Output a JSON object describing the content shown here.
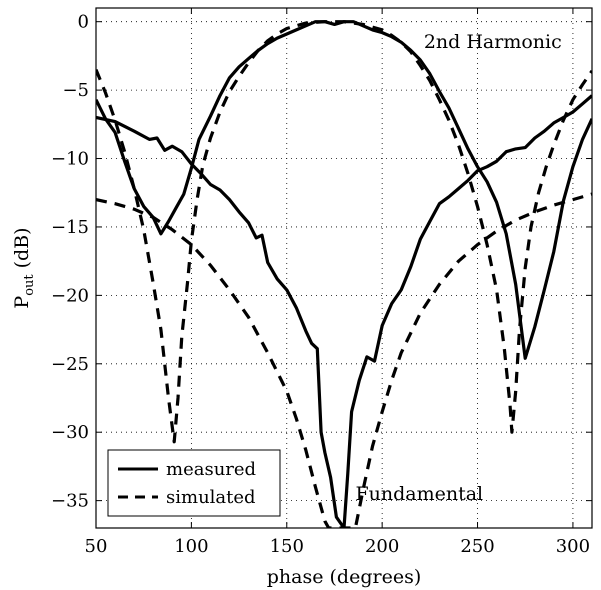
{
  "chart_data": {
    "type": "line",
    "title": "",
    "xlabel": "phase (degrees)",
    "ylabel": {
      "main": "P",
      "sub": "out",
      "unit": "(dB)"
    },
    "xlim": [
      50,
      310
    ],
    "ylim": [
      -37,
      1
    ],
    "xticks": [
      50,
      100,
      150,
      200,
      250,
      300
    ],
    "yticks": [
      0,
      -5,
      -10,
      -15,
      -20,
      -25,
      -30,
      -35
    ],
    "grid": "dotted",
    "legend": {
      "position": "bottom-left",
      "entries": [
        {
          "label": "measured",
          "style": "solid"
        },
        {
          "label": "simulated",
          "style": "dashed"
        }
      ]
    },
    "annotations": [
      {
        "text": "2nd Harmonic",
        "x": 258,
        "y": -1.5
      },
      {
        "text": "Fundamental",
        "x": 186,
        "y": -34.5
      }
    ],
    "series": [
      {
        "style": "solid",
        "points": [
          [
            50,
            -7.0
          ],
          [
            60,
            -7.3
          ],
          [
            70,
            -8.0
          ],
          [
            78,
            -8.6
          ],
          [
            82,
            -8.5
          ],
          [
            86,
            -9.4
          ],
          [
            90,
            -9.1
          ],
          [
            95,
            -9.5
          ],
          [
            100,
            -10.4
          ],
          [
            105,
            -11.1
          ],
          [
            110,
            -11.9
          ],
          [
            115,
            -12.3
          ],
          [
            120,
            -13.0
          ],
          [
            125,
            -13.9
          ],
          [
            130,
            -14.7
          ],
          [
            134,
            -15.8
          ],
          [
            137,
            -15.6
          ],
          [
            140,
            -17.6
          ],
          [
            145,
            -18.8
          ],
          [
            150,
            -19.6
          ],
          [
            155,
            -20.9
          ],
          [
            160,
            -22.6
          ],
          [
            163,
            -23.5
          ],
          [
            166,
            -23.9
          ],
          [
            168,
            -30.0
          ],
          [
            170,
            -31.5
          ],
          [
            173,
            -33.3
          ],
          [
            176,
            -36.2
          ],
          [
            180,
            -37.0
          ],
          [
            182,
            -33.0
          ],
          [
            184,
            -28.5
          ],
          [
            188,
            -26.2
          ],
          [
            192,
            -24.5
          ],
          [
            196,
            -24.8
          ],
          [
            200,
            -22.2
          ],
          [
            205,
            -20.6
          ],
          [
            210,
            -19.6
          ],
          [
            215,
            -17.9
          ],
          [
            220,
            -15.9
          ],
          [
            225,
            -14.6
          ],
          [
            230,
            -13.3
          ],
          [
            235,
            -12.8
          ],
          [
            240,
            -12.2
          ],
          [
            245,
            -11.6
          ],
          [
            250,
            -10.9
          ],
          [
            255,
            -10.6
          ],
          [
            260,
            -10.2
          ],
          [
            265,
            -9.5
          ],
          [
            270,
            -9.3
          ],
          [
            275,
            -9.2
          ],
          [
            280,
            -8.5
          ],
          [
            285,
            -8.0
          ],
          [
            290,
            -7.4
          ],
          [
            295,
            -7.0
          ],
          [
            300,
            -6.6
          ],
          [
            305,
            -6.0
          ],
          [
            310,
            -5.4
          ]
        ]
      },
      {
        "style": "solid",
        "points": [
          [
            50,
            -5.7
          ],
          [
            55,
            -7.1
          ],
          [
            60,
            -8.1
          ],
          [
            65,
            -10.2
          ],
          [
            70,
            -12.2
          ],
          [
            75,
            -13.5
          ],
          [
            80,
            -14.3
          ],
          [
            84,
            -15.5
          ],
          [
            88,
            -14.6
          ],
          [
            92,
            -13.6
          ],
          [
            96,
            -12.6
          ],
          [
            100,
            -10.7
          ],
          [
            104,
            -8.6
          ],
          [
            110,
            -6.9
          ],
          [
            115,
            -5.4
          ],
          [
            120,
            -4.1
          ],
          [
            125,
            -3.3
          ],
          [
            130,
            -2.7
          ],
          [
            135,
            -2.1
          ],
          [
            140,
            -1.6
          ],
          [
            145,
            -1.2
          ],
          [
            150,
            -0.9
          ],
          [
            155,
            -0.6
          ],
          [
            160,
            -0.3
          ],
          [
            165,
            0.0
          ],
          [
            170,
            0.0
          ],
          [
            175,
            -0.2
          ],
          [
            180,
            0.0
          ],
          [
            185,
            0.0
          ],
          [
            190,
            -0.3
          ],
          [
            195,
            -0.6
          ],
          [
            200,
            -0.8
          ],
          [
            205,
            -1.1
          ],
          [
            210,
            -1.5
          ],
          [
            215,
            -2.1
          ],
          [
            220,
            -2.8
          ],
          [
            225,
            -3.8
          ],
          [
            230,
            -5.1
          ],
          [
            235,
            -6.3
          ],
          [
            240,
            -7.8
          ],
          [
            245,
            -9.3
          ],
          [
            250,
            -10.6
          ],
          [
            255,
            -11.7
          ],
          [
            260,
            -13.2
          ],
          [
            265,
            -15.5
          ],
          [
            270,
            -19.2
          ],
          [
            275,
            -24.6
          ],
          [
            280,
            -22.3
          ],
          [
            285,
            -19.6
          ],
          [
            290,
            -16.8
          ],
          [
            295,
            -13.1
          ],
          [
            300,
            -10.6
          ],
          [
            305,
            -8.6
          ],
          [
            310,
            -7.1
          ]
        ]
      },
      {
        "style": "dashed",
        "points": [
          [
            50,
            -13.0
          ],
          [
            60,
            -13.3
          ],
          [
            70,
            -13.7
          ],
          [
            80,
            -14.3
          ],
          [
            90,
            -15.2
          ],
          [
            100,
            -16.3
          ],
          [
            110,
            -17.8
          ],
          [
            120,
            -19.6
          ],
          [
            130,
            -21.6
          ],
          [
            140,
            -24.2
          ],
          [
            150,
            -27.0
          ],
          [
            155,
            -29.0
          ],
          [
            160,
            -31.3
          ],
          [
            165,
            -34.0
          ],
          [
            170,
            -36.5
          ],
          [
            172,
            -37.0
          ],
          [
            180,
            -37.0
          ],
          [
            186,
            -37.0
          ],
          [
            190,
            -34.2
          ],
          [
            195,
            -31.0
          ],
          [
            200,
            -28.5
          ],
          [
            205,
            -26.2
          ],
          [
            210,
            -24.2
          ],
          [
            220,
            -21.3
          ],
          [
            230,
            -19.2
          ],
          [
            240,
            -17.5
          ],
          [
            250,
            -16.3
          ],
          [
            260,
            -15.3
          ],
          [
            270,
            -14.5
          ],
          [
            280,
            -13.9
          ],
          [
            290,
            -13.4
          ],
          [
            300,
            -13.0
          ],
          [
            310,
            -12.6
          ]
        ]
      },
      {
        "style": "dashed",
        "points": [
          [
            50,
            -3.5
          ],
          [
            55,
            -5.2
          ],
          [
            60,
            -7.2
          ],
          [
            65,
            -9.5
          ],
          [
            70,
            -12.2
          ],
          [
            75,
            -15.2
          ],
          [
            80,
            -19.1
          ],
          [
            84,
            -22.5
          ],
          [
            88,
            -27.5
          ],
          [
            91,
            -30.7
          ],
          [
            93,
            -27.5
          ],
          [
            95,
            -23.0
          ],
          [
            98,
            -19.0
          ],
          [
            100,
            -16.0
          ],
          [
            103,
            -13.0
          ],
          [
            106,
            -10.5
          ],
          [
            110,
            -8.5
          ],
          [
            115,
            -6.6
          ],
          [
            120,
            -5.1
          ],
          [
            125,
            -4.0
          ],
          [
            130,
            -3.0
          ],
          [
            135,
            -2.1
          ],
          [
            140,
            -1.4
          ],
          [
            145,
            -0.9
          ],
          [
            150,
            -0.5
          ],
          [
            155,
            -0.3
          ],
          [
            160,
            -0.1
          ],
          [
            170,
            0.0
          ],
          [
            180,
            0.0
          ],
          [
            190,
            -0.2
          ],
          [
            200,
            -0.6
          ],
          [
            205,
            -1.0
          ],
          [
            210,
            -1.5
          ],
          [
            215,
            -2.2
          ],
          [
            220,
            -3.2
          ],
          [
            225,
            -4.3
          ],
          [
            230,
            -5.7
          ],
          [
            235,
            -7.2
          ],
          [
            240,
            -9.0
          ],
          [
            245,
            -11.1
          ],
          [
            250,
            -13.5
          ],
          [
            255,
            -16.3
          ],
          [
            260,
            -19.6
          ],
          [
            264,
            -23.8
          ],
          [
            267,
            -28.0
          ],
          [
            268,
            -30.0
          ],
          [
            270,
            -27.0
          ],
          [
            272,
            -22.5
          ],
          [
            275,
            -18.0
          ],
          [
            278,
            -15.0
          ],
          [
            282,
            -12.5
          ],
          [
            286,
            -10.6
          ],
          [
            290,
            -9.0
          ],
          [
            295,
            -7.2
          ],
          [
            300,
            -5.7
          ],
          [
            305,
            -4.6
          ],
          [
            310,
            -3.6
          ]
        ]
      }
    ]
  }
}
